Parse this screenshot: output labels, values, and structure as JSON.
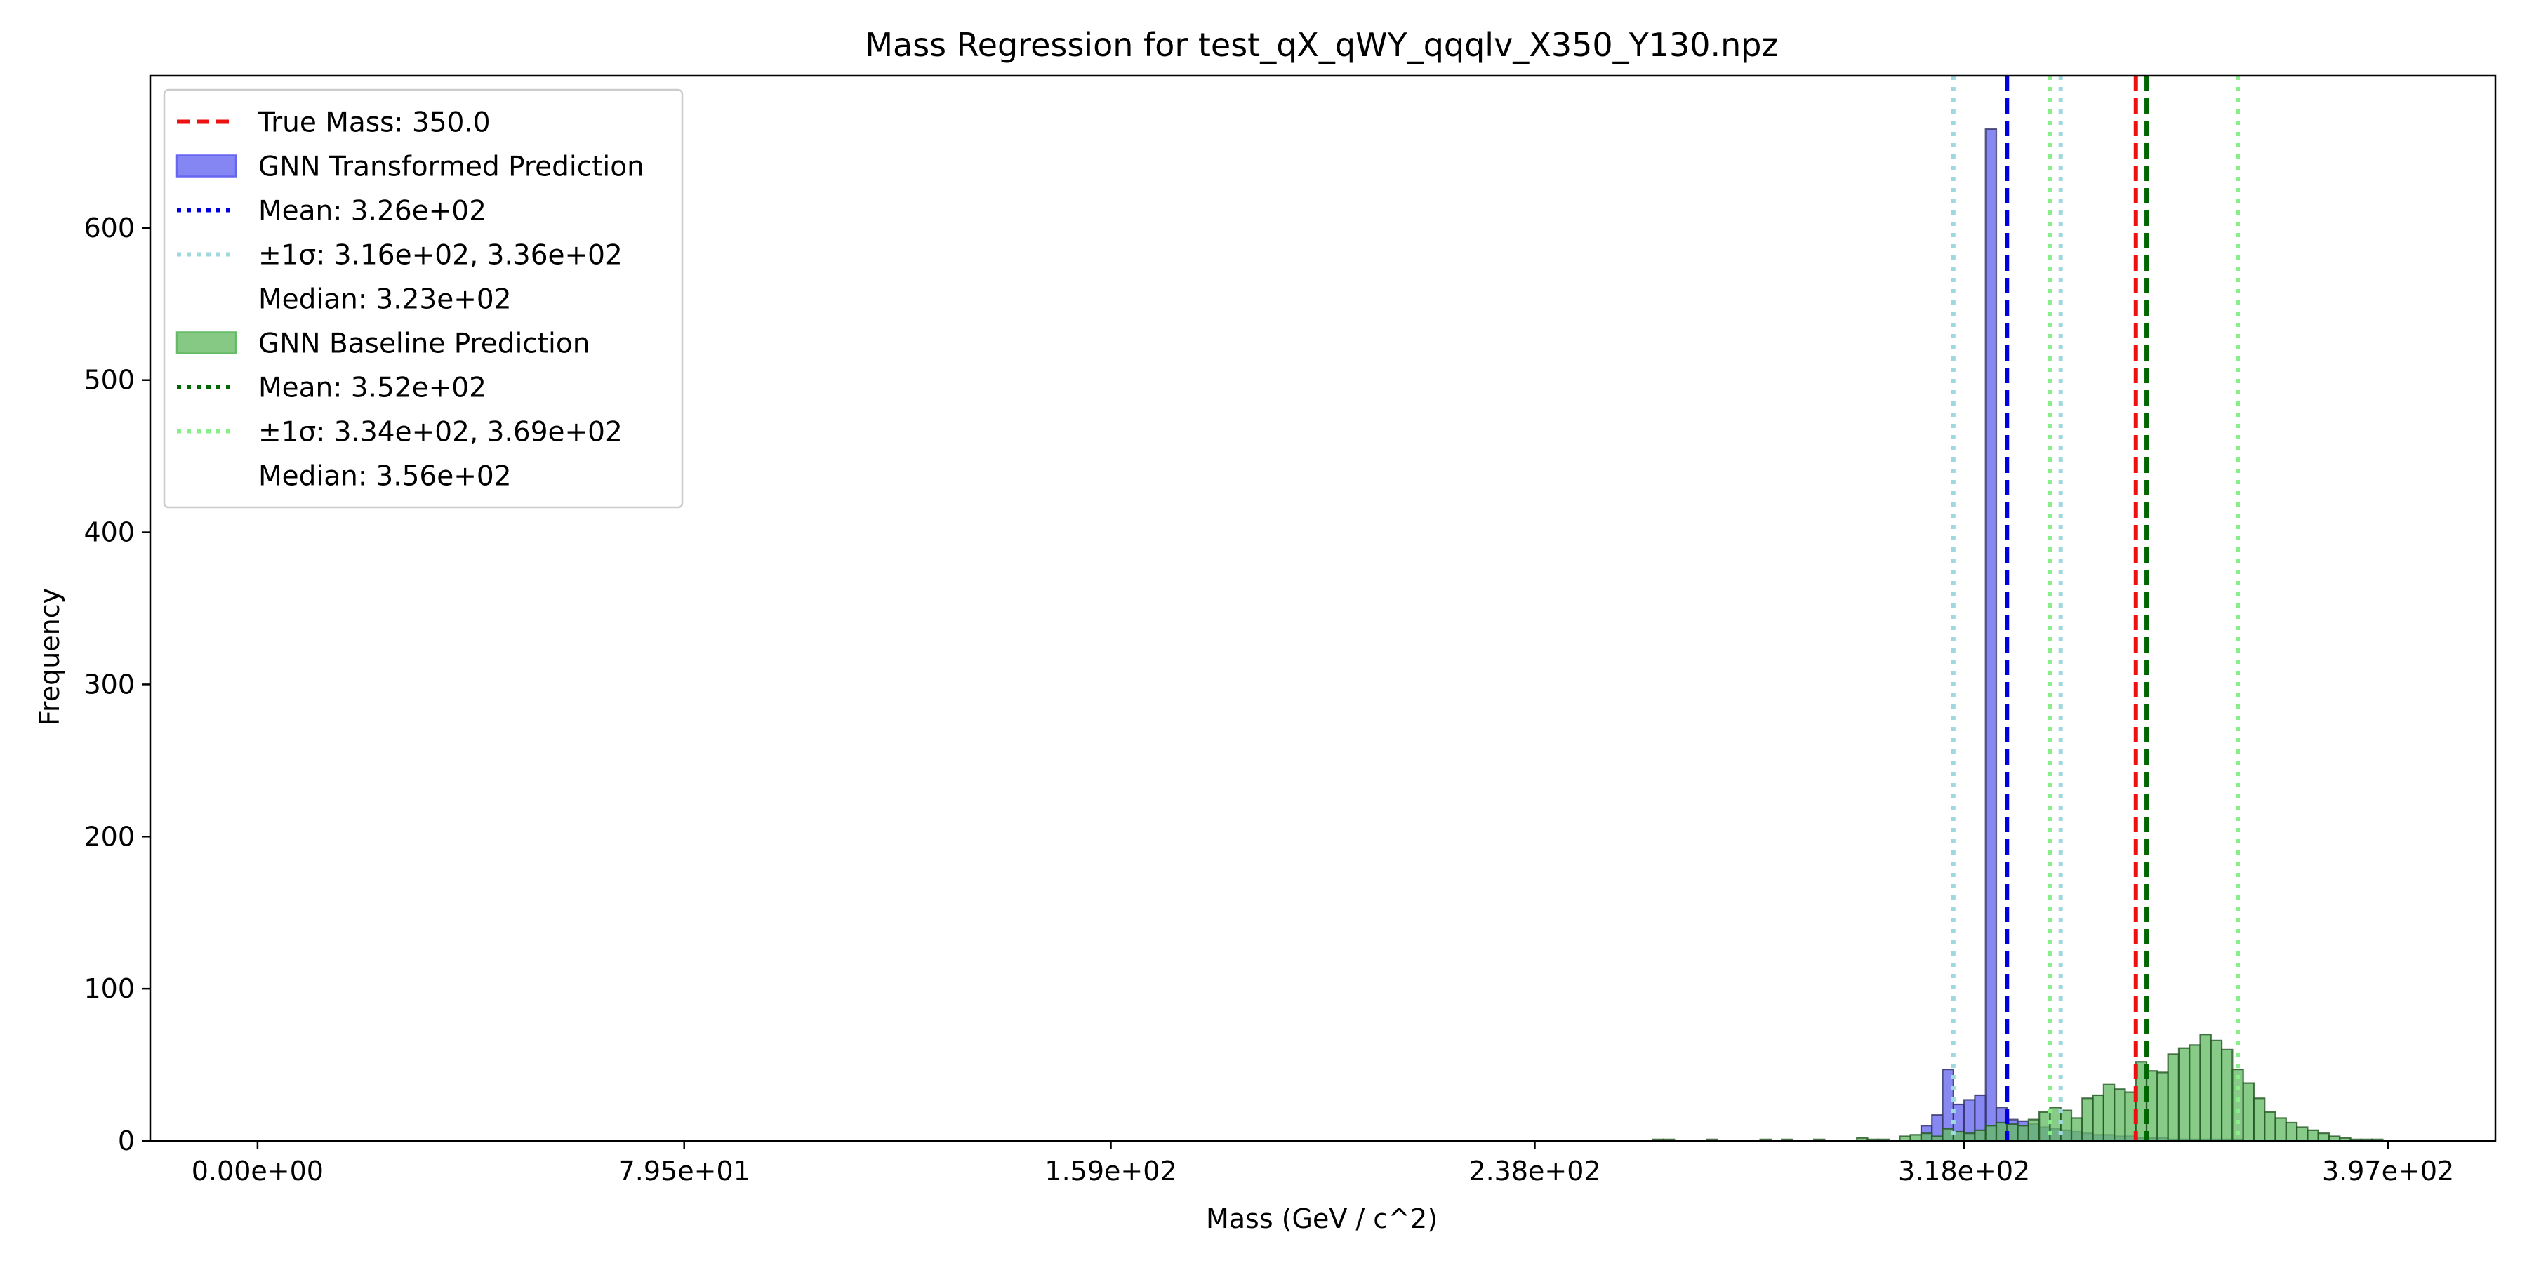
{
  "chart_data": {
    "type": "bar",
    "title": "Mass Regression for test_qX_qWY_qqqlv_X350_Y130.npz",
    "xlabel": "Mass (GeV / c^2)",
    "ylabel": "Frequency",
    "xlim": [
      -20,
      417
    ],
    "ylim": [
      0,
      700
    ],
    "xticks": [
      0,
      79.5,
      159,
      238,
      318,
      397
    ],
    "xtick_labels": [
      "0.00e+00",
      "7.95e+01",
      "1.59e+02",
      "2.38e+02",
      "3.18e+02",
      "3.97e+02"
    ],
    "yticks": [
      0,
      100,
      200,
      300,
      400,
      500,
      600
    ],
    "ytick_labels": [
      "0",
      "100",
      "200",
      "300",
      "400",
      "500",
      "600"
    ],
    "grid": false,
    "legend_position": "top-left",
    "bin_width": 2,
    "true_mass": 350.0,
    "series": [
      {
        "name": "GNN Transformed Prediction",
        "color": "#6666f0",
        "edgecolor": "#333366",
        "bins": [
          [
            310,
            10
          ],
          [
            312,
            17
          ],
          [
            314,
            47
          ],
          [
            316,
            24
          ],
          [
            318,
            27
          ],
          [
            320,
            30
          ],
          [
            322,
            665
          ],
          [
            324,
            22
          ],
          [
            326,
            14
          ],
          [
            328,
            13
          ],
          [
            330,
            11
          ],
          [
            332,
            9
          ],
          [
            334,
            8
          ],
          [
            336,
            7
          ],
          [
            338,
            6
          ],
          [
            340,
            5
          ],
          [
            342,
            4
          ],
          [
            344,
            4
          ],
          [
            346,
            3
          ],
          [
            348,
            3
          ],
          [
            350,
            2
          ],
          [
            352,
            2
          ],
          [
            354,
            2
          ],
          [
            356,
            1
          ],
          [
            358,
            1
          ],
          [
            360,
            1
          ],
          [
            362,
            1
          ],
          [
            364,
            1
          ],
          [
            366,
            1
          ],
          [
            368,
            1
          ]
        ],
        "mean": 326,
        "sigma": [
          316,
          336
        ],
        "mean_color": "#0000dd",
        "sigma_color": "#a0d8e0"
      },
      {
        "name": "GNN Baseline Prediction",
        "color": "#66bb66",
        "edgecolor": "#225522",
        "bins": [
          [
            260,
            1
          ],
          [
            262,
            1
          ],
          [
            270,
            1
          ],
          [
            280,
            1
          ],
          [
            284,
            1
          ],
          [
            290,
            1
          ],
          [
            298,
            2
          ],
          [
            300,
            1
          ],
          [
            302,
            1
          ],
          [
            306,
            3
          ],
          [
            308,
            4
          ],
          [
            310,
            5
          ],
          [
            312,
            3
          ],
          [
            314,
            8
          ],
          [
            316,
            6
          ],
          [
            318,
            5
          ],
          [
            320,
            7
          ],
          [
            322,
            10
          ],
          [
            324,
            12
          ],
          [
            326,
            11
          ],
          [
            328,
            10
          ],
          [
            330,
            14
          ],
          [
            332,
            19
          ],
          [
            334,
            22
          ],
          [
            336,
            20
          ],
          [
            338,
            15
          ],
          [
            340,
            28
          ],
          [
            342,
            30
          ],
          [
            344,
            37
          ],
          [
            346,
            34
          ],
          [
            348,
            32
          ],
          [
            350,
            52
          ],
          [
            352,
            46
          ],
          [
            354,
            45
          ],
          [
            356,
            57
          ],
          [
            358,
            61
          ],
          [
            360,
            63
          ],
          [
            362,
            70
          ],
          [
            364,
            66
          ],
          [
            366,
            60
          ],
          [
            368,
            47
          ],
          [
            370,
            38
          ],
          [
            372,
            28
          ],
          [
            374,
            19
          ],
          [
            376,
            15
          ],
          [
            378,
            12
          ],
          [
            380,
            9
          ],
          [
            382,
            7
          ],
          [
            384,
            5
          ],
          [
            386,
            3
          ],
          [
            388,
            2
          ],
          [
            390,
            1
          ],
          [
            392,
            1
          ],
          [
            394,
            1
          ]
        ],
        "mean": 352,
        "sigma": [
          334,
          369
        ],
        "mean_color": "#006600",
        "sigma_color": "#88ee88"
      }
    ],
    "legend": [
      {
        "kind": "dash",
        "color": "#ee1111",
        "label": "True Mass: 350.0"
      },
      {
        "kind": "patch",
        "color": "#6666f0",
        "label": "GNN Transformed Prediction"
      },
      {
        "kind": "dot",
        "color": "#0000dd",
        "label": "Mean: 3.26e+02"
      },
      {
        "kind": "dot",
        "color": "#a0d8e0",
        "label": "±1σ: 3.16e+02, 3.36e+02"
      },
      {
        "kind": "none",
        "color": "",
        "label": "Median: 3.23e+02"
      },
      {
        "kind": "patch",
        "color": "#66bb66",
        "label": "GNN Baseline Prediction"
      },
      {
        "kind": "dot",
        "color": "#006600",
        "label": "Mean: 3.52e+02"
      },
      {
        "kind": "dot",
        "color": "#88ee88",
        "label": "±1σ: 3.34e+02, 3.69e+02"
      },
      {
        "kind": "none",
        "color": "",
        "label": "Median: 3.56e+02"
      }
    ]
  }
}
